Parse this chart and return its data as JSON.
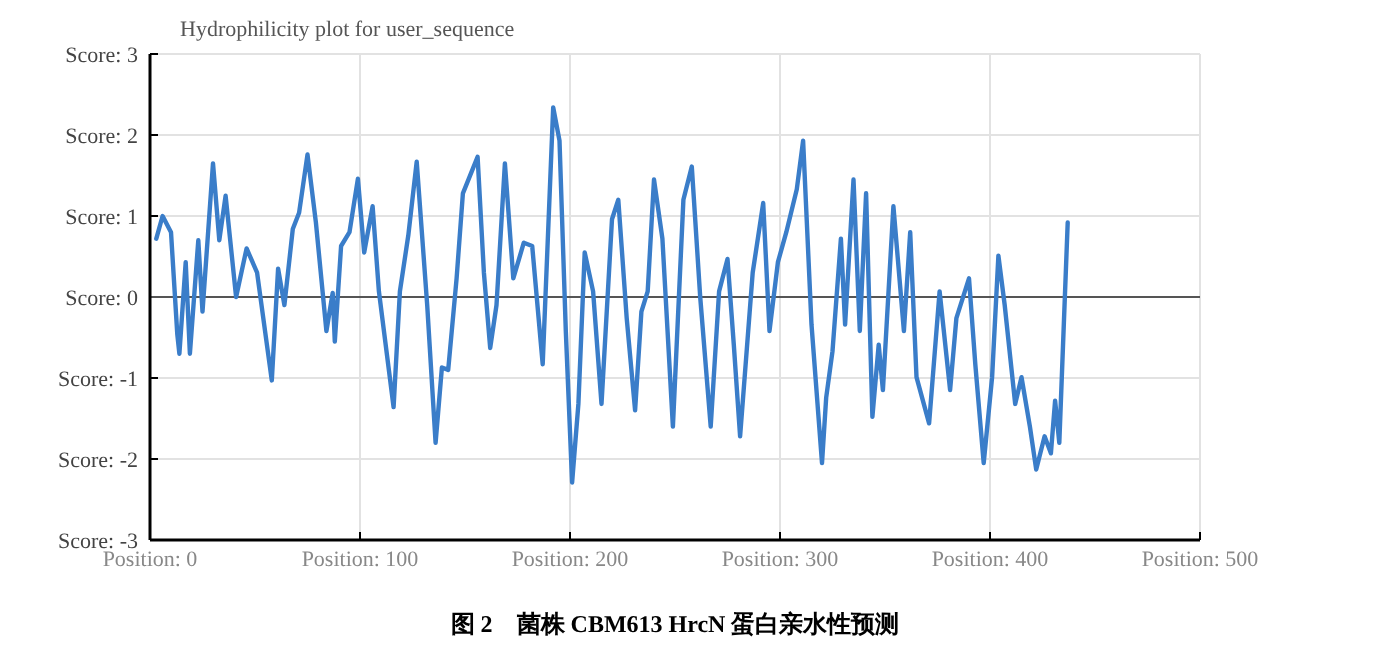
{
  "chart_data": {
    "type": "line",
    "title": "Hydrophilicity plot for user_sequence",
    "annotations": [
      "图 2　菌株 CBM613 HrcN 蛋白亲水性预测"
    ],
    "xlim": [
      0,
      500
    ],
    "ylim": [
      -3,
      3
    ],
    "xticks": [
      {
        "value": 0,
        "label": "Position: 0"
      },
      {
        "value": 100,
        "label": "Position: 100"
      },
      {
        "value": 200,
        "label": "Position: 200"
      },
      {
        "value": 300,
        "label": "Position: 300"
      },
      {
        "value": 400,
        "label": "Position: 400"
      },
      {
        "value": 500,
        "label": "Position: 500"
      }
    ],
    "yticks": [
      {
        "value": -3,
        "label": "Score: -3"
      },
      {
        "value": -2,
        "label": "Score: -2"
      },
      {
        "value": -1,
        "label": "Score: -1"
      },
      {
        "value": 0,
        "label": "Score: 0"
      },
      {
        "value": 1,
        "label": "Score: 1"
      },
      {
        "value": 2,
        "label": "Score: 2"
      },
      {
        "value": 3,
        "label": "Score: 3"
      }
    ],
    "grid": true,
    "line_style": "solid",
    "marker": "none",
    "ref_lines": [
      {
        "axis": "y",
        "value": 0,
        "color": "#555555"
      }
    ],
    "series": [
      {
        "color": "#3a7dc9",
        "x": [
          3,
          6,
          10,
          13,
          14,
          17,
          19,
          23,
          25,
          30,
          33,
          36,
          41,
          46,
          51,
          58,
          61,
          64,
          68,
          71,
          75,
          79,
          84,
          87,
          88,
          91,
          95,
          99,
          102,
          106,
          109,
          116,
          119,
          123,
          127,
          132,
          136,
          139,
          142,
          146,
          149,
          156,
          159,
          162,
          165,
          169,
          173,
          178,
          182,
          187,
          192,
          195,
          198,
          201,
          204,
          207,
          211,
          215,
          220,
          223,
          227,
          231,
          234,
          237,
          240,
          244,
          249,
          254,
          258,
          262,
          267,
          271,
          275,
          278,
          281,
          287,
          292,
          295,
          299,
          303,
          308,
          311,
          315,
          320,
          322,
          325,
          329,
          331,
          335,
          338,
          341,
          344,
          347,
          349,
          354,
          359,
          362,
          365,
          371,
          376,
          381,
          384,
          390,
          393,
          397,
          401,
          404,
          407,
          412,
          415,
          419,
          422,
          426,
          429,
          431,
          433,
          437
        ],
        "values": [
          0.72,
          1.0,
          0.8,
          -0.46,
          -0.7,
          0.43,
          -0.7,
          0.7,
          -0.18,
          1.65,
          0.7,
          1.25,
          0,
          0.6,
          0.3,
          -1.03,
          0.35,
          -0.1,
          0.84,
          1.04,
          1.76,
          0.92,
          -0.42,
          0.05,
          -0.55,
          0.63,
          0.8,
          1.46,
          0.55,
          1.12,
          0.07,
          -1.36,
          0.07,
          0.76,
          1.67,
          -0.1,
          -1.8,
          -0.87,
          -0.9,
          0.23,
          1.28,
          1.73,
          0.3,
          -0.63,
          -0.1,
          1.65,
          0.23,
          0.67,
          0.63,
          -0.83,
          2.34,
          1.93,
          -0.42,
          -2.29,
          -1.32,
          0.55,
          0.07,
          -1.32,
          0.96,
          1.2,
          -0.26,
          -1.4,
          -0.18,
          0.07,
          1.45,
          0.72,
          -1.6,
          1.2,
          1.61,
          0,
          -1.6,
          0.07,
          0.47,
          -0.59,
          -1.72,
          0.3,
          1.16,
          -0.42,
          0.43,
          0.8,
          1.33,
          1.93,
          -0.34,
          -2.05,
          -1.24,
          -0.67,
          0.72,
          -0.34,
          1.45,
          -0.42,
          1.28,
          -1.48,
          -0.59,
          -1.15,
          1.12,
          -0.42,
          0.8,
          -0.99,
          -1.56,
          0.07,
          -1.15,
          -0.26,
          0.23,
          -0.83,
          -2.05,
          -0.99,
          0.51,
          -0.1,
          -1.32,
          -0.99,
          -1.6,
          -2.13,
          -1.72,
          -1.93,
          -1.28,
          -1.8,
          0.92
        ]
      }
    ]
  }
}
